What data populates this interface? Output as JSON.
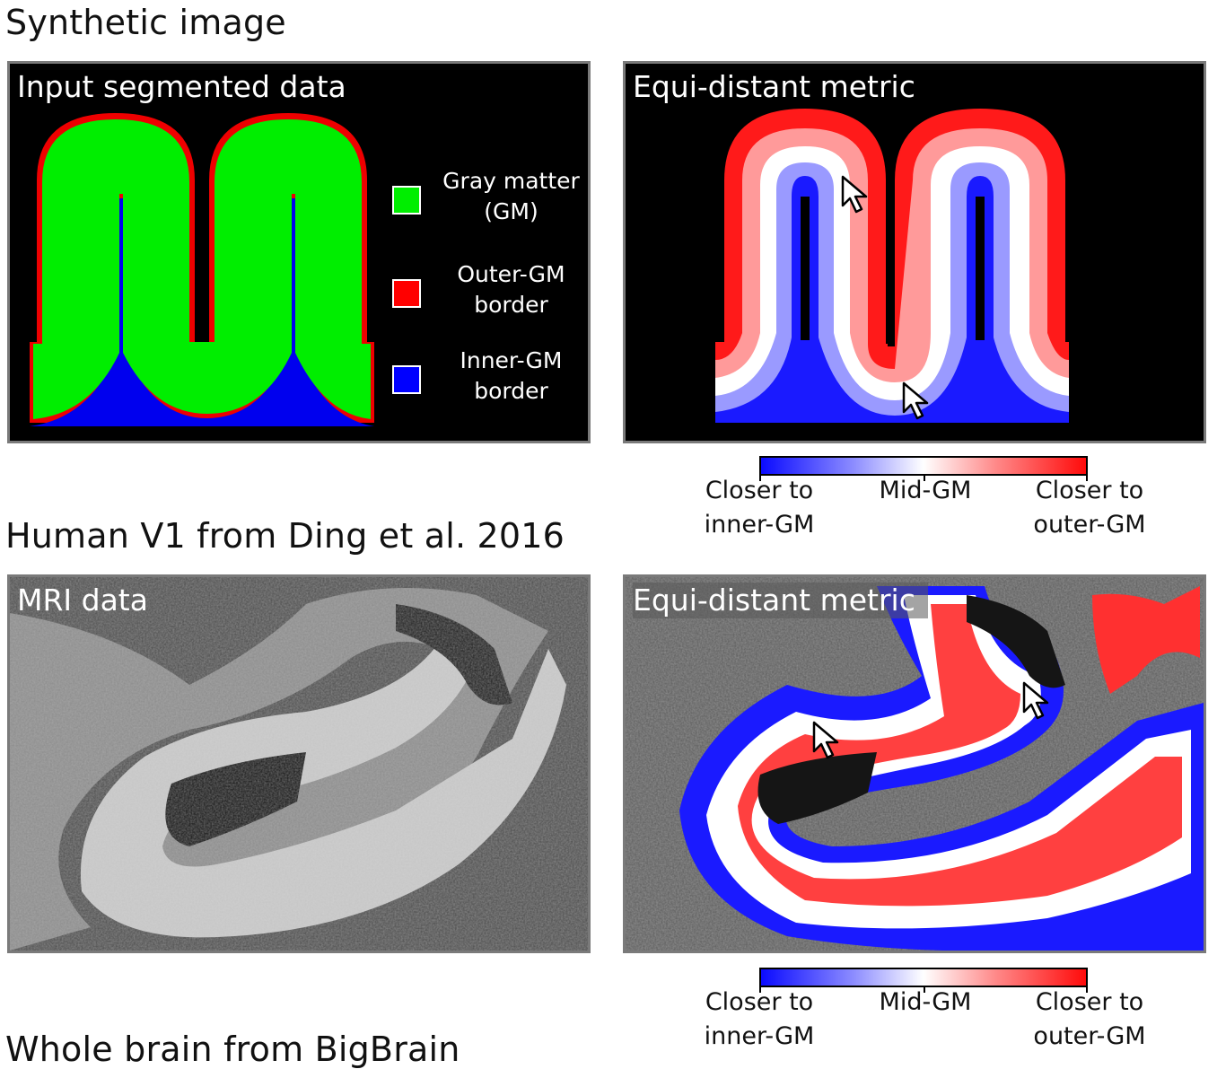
{
  "sections": {
    "synthetic": "Synthetic image",
    "human_v1": "Human V1 from Ding et al. 2016",
    "bigbrain": "Whole brain from BigBrain"
  },
  "panels": {
    "input": {
      "title": "Input segmented data",
      "legend": [
        {
          "line1": "Gray matter",
          "line2": "(GM)",
          "color": "#00ee00"
        },
        {
          "line1": "Outer-GM",
          "line2": "border",
          "color": "#ff0000"
        },
        {
          "line1": "Inner-GM",
          "line2": "border",
          "color": "#0000ff"
        }
      ]
    },
    "synthetic_metric": {
      "title": "Equi-distant metric"
    },
    "mri": {
      "title": "MRI data"
    },
    "mri_metric": {
      "title": "Equi-distant metric"
    }
  },
  "colorbar": {
    "left_line1": "Closer to",
    "left_line2": "inner-GM",
    "mid": "Mid-GM",
    "right_line1": "Closer to",
    "right_line2": "outer-GM",
    "colors": {
      "inner": "#0b0bff",
      "mid": "#ffffff",
      "outer": "#ff0b0b"
    }
  }
}
